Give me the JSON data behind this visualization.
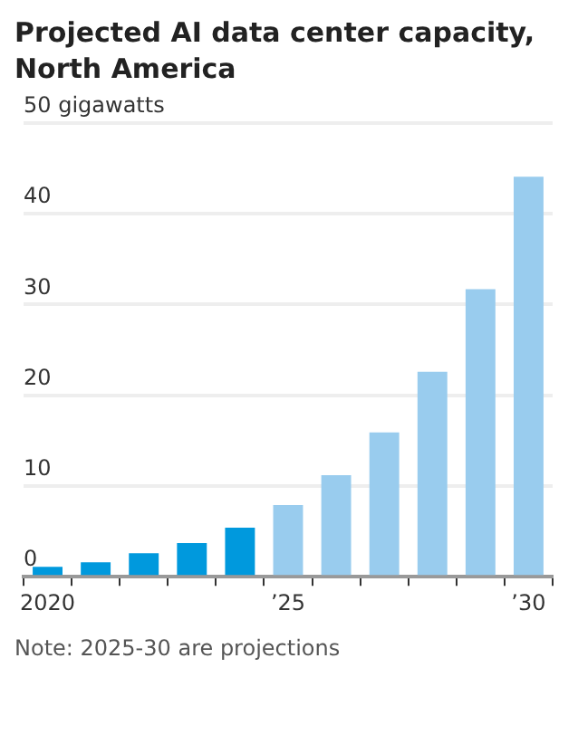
{
  "chart_data": {
    "type": "bar",
    "title": "Projected AI data center capacity, North America",
    "categories": [
      "2020",
      null,
      null,
      null,
      null,
      "’25",
      null,
      null,
      null,
      null,
      "’30"
    ],
    "values": [
      1.1,
      1.6,
      2.6,
      3.7,
      5.4,
      7.9,
      11.2,
      15.9,
      22.6,
      31.7,
      44.1
    ],
    "colors": [
      "#0099dd",
      "#0099dd",
      "#0099dd",
      "#0099dd",
      "#0099dd",
      "#99ccee",
      "#99ccee",
      "#99ccee",
      "#99ccee",
      "#99ccee",
      "#99ccee"
    ],
    "ylim": [
      0,
      50
    ],
    "yticks": [
      0,
      10,
      20,
      30,
      40,
      {
        "value": 50,
        "label": "50 gigawatts"
      }
    ],
    "grid": "y",
    "annotations": [
      "Note: 2025-30 are projections"
    ]
  }
}
